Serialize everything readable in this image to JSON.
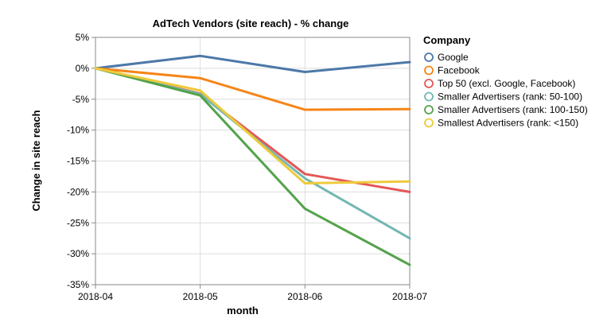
{
  "chart_data": {
    "type": "line",
    "title": "AdTech Vendors (site reach) - % change",
    "xlabel": "month",
    "ylabel": "Change in site reach",
    "x": [
      "2018-04",
      "2018-05",
      "2018-06",
      "2018-07"
    ],
    "y_ticks": [
      5,
      0,
      -5,
      -10,
      -15,
      -20,
      -25,
      -30,
      -35
    ],
    "y_tick_labels": [
      "5%",
      "0%",
      "-5%",
      "-10%",
      "-15%",
      "-20%",
      "-25%",
      "-30%",
      "-35%"
    ],
    "ylim": [
      -35,
      5
    ],
    "grid": true,
    "legend": {
      "title": "Company",
      "placement": "right"
    },
    "series": [
      {
        "name": "Google",
        "color": "#4c78a8",
        "values": [
          0,
          2.0,
          -0.6,
          1.0
        ]
      },
      {
        "name": "Facebook",
        "color": "#f58518",
        "values": [
          0,
          -1.6,
          -6.7,
          -6.6
        ]
      },
      {
        "name": "Top 50 (excl. Google, Facebook)",
        "color": "#e45756",
        "values": [
          0,
          -4.1,
          -17.1,
          -20.0
        ]
      },
      {
        "name": "Smaller Advertisers (rank: 50-100)",
        "color": "#72b7b2",
        "values": [
          0,
          -4.2,
          -17.8,
          -27.5
        ]
      },
      {
        "name": "Smaller Advertisers (rank: 100-150)",
        "color": "#54a24b",
        "values": [
          0,
          -4.4,
          -22.7,
          -31.8
        ]
      },
      {
        "name": "Smallest Advertisers (rank: <150)",
        "color": "#eeca3b",
        "values": [
          0,
          -3.6,
          -18.6,
          -18.3
        ]
      }
    ]
  }
}
